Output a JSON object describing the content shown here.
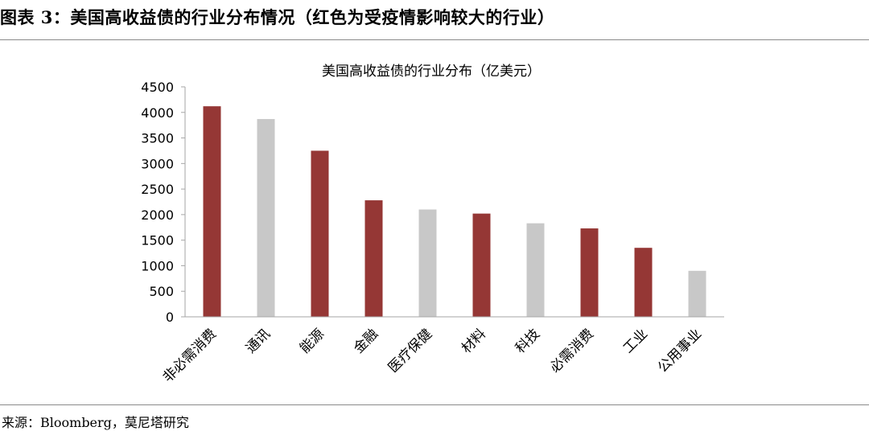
{
  "figure": {
    "caption": "图表 3：美国高收益债的行业分布情况（红色为受疫情影响较大的行业）",
    "source": "来源：Bloomberg，莫尼塔研究"
  },
  "colors": {
    "highlight": "#953735",
    "normal": "#c8c8c8",
    "axis": "#a6a6a6"
  },
  "chart_data": {
    "type": "bar",
    "title": "美国高收益债的行业分布（亿美元）",
    "xlabel": "",
    "ylabel": "",
    "ylim": [
      0,
      4500
    ],
    "yticks": [
      0,
      500,
      1000,
      1500,
      2000,
      2500,
      3000,
      3500,
      4000,
      4500
    ],
    "categories": [
      "非必需消费",
      "通讯",
      "能源",
      "金融",
      "医疗保健",
      "材料",
      "科技",
      "必需消费",
      "工业",
      "公用事业"
    ],
    "values": [
      4120,
      3870,
      3250,
      2280,
      2100,
      2020,
      1830,
      1730,
      1350,
      900
    ],
    "highlighted": [
      true,
      false,
      true,
      true,
      false,
      true,
      false,
      true,
      true,
      false
    ],
    "grid": false,
    "legend": "none"
  }
}
